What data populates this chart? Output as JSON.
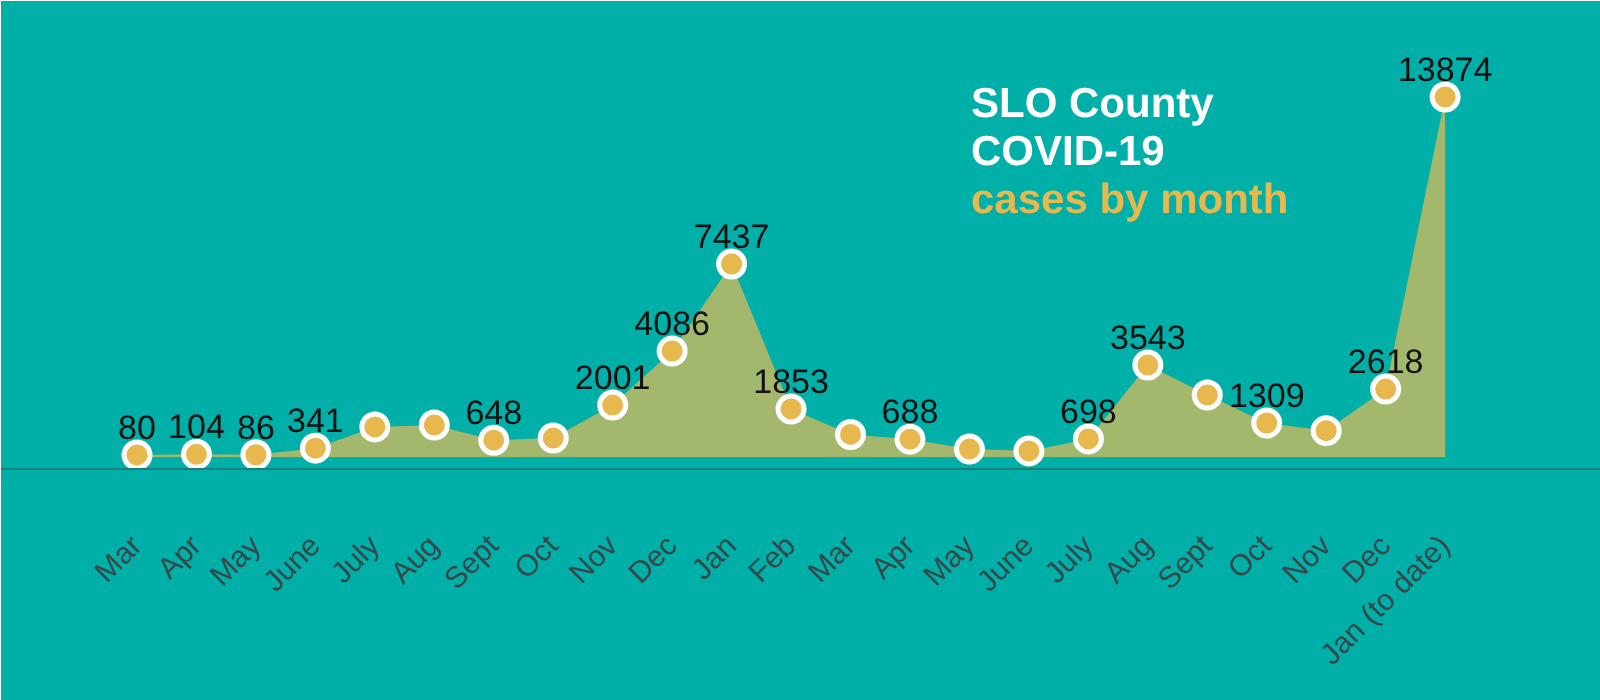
{
  "chart_data": {
    "type": "area",
    "title": "SLO County\nCOVID-19",
    "subtitle": "cases by month",
    "categories": [
      "Mar",
      "Apr",
      "May",
      "June",
      "July",
      "Aug",
      "Sept",
      "Oct",
      "Nov",
      "Dec",
      "Jan",
      "Feb",
      "Mar",
      "Apr",
      "May",
      "June",
      "July",
      "Aug",
      "Sept",
      "Oct",
      "Nov",
      "Dec",
      "Jan (to date)"
    ],
    "series": [
      {
        "color": "#a3b86c",
        "values": [
          80,
          104,
          86,
          341,
          1160,
          1230,
          648,
          730,
          2001,
          4086,
          7437,
          1853,
          870,
          688,
          305,
          235,
          698,
          3543,
          2390,
          1309,
          1015,
          2618,
          13874
        ],
        "value_labels": [
          "80",
          "104",
          "86",
          "341",
          null,
          null,
          "648",
          null,
          "2001",
          "4086",
          "7437",
          "1853",
          null,
          "688",
          null,
          null,
          "698",
          "3543",
          null,
          "1309",
          null,
          "2618",
          "13874"
        ]
      }
    ],
    "marker": "circle",
    "grid": false
  }
}
